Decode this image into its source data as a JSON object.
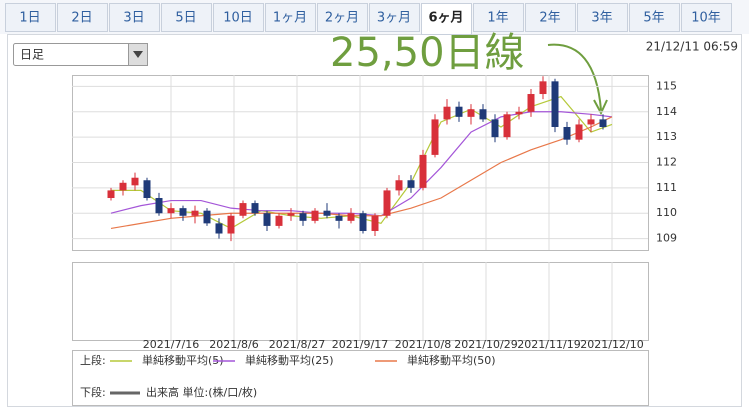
{
  "tabs": [
    "1日",
    "2日",
    "3日",
    "5日",
    "10日",
    "1ヶ月",
    "2ヶ月",
    "3ヶ月",
    "6ヶ月",
    "1年",
    "2年",
    "3年",
    "5年",
    "10年"
  ],
  "active_tab": 8,
  "dropdown": "日足",
  "timestamp": "21/12/11 06:59",
  "annotation": "25,50日線",
  "chart_data": {
    "type": "candlestick",
    "xlim": [
      -33,
      159
    ],
    "xticks": [
      {
        "value": 0,
        "label": "2021/7/16"
      },
      {
        "value": 21,
        "label": "2021/8/6"
      },
      {
        "value": 42,
        "label": "2021/8/27"
      },
      {
        "value": 63,
        "label": "2021/9/17"
      },
      {
        "value": 84,
        "label": "2021/10/8"
      },
      {
        "value": 105,
        "label": "2021/10/29"
      },
      {
        "value": 126,
        "label": "2021/11/19"
      },
      {
        "value": 147,
        "label": "2021/12/10"
      }
    ],
    "ylim": [
      108.55,
      115.45
    ],
    "yticks": [
      109,
      110,
      111,
      112,
      113,
      114,
      115
    ],
    "grid": true,
    "up_color": "#d8303a",
    "down_color": "#1f3a78",
    "candles": [
      {
        "x": -20,
        "open": 110.6,
        "high": 111.0,
        "low": 110.5,
        "close": 110.9
      },
      {
        "x": -16,
        "open": 110.9,
        "high": 111.3,
        "low": 110.7,
        "close": 111.2
      },
      {
        "x": -12,
        "open": 111.1,
        "high": 111.6,
        "low": 110.9,
        "close": 111.4
      },
      {
        "x": -8,
        "open": 111.3,
        "high": 111.4,
        "low": 110.5,
        "close": 110.6
      },
      {
        "x": -4,
        "open": 110.6,
        "high": 110.8,
        "low": 109.9,
        "close": 110.0
      },
      {
        "x": 0,
        "open": 110.0,
        "high": 110.4,
        "low": 109.8,
        "close": 110.2
      },
      {
        "x": 4,
        "open": 110.2,
        "high": 110.3,
        "low": 109.7,
        "close": 109.9
      },
      {
        "x": 8,
        "open": 109.9,
        "high": 110.3,
        "low": 109.6,
        "close": 110.1
      },
      {
        "x": 12,
        "open": 110.1,
        "high": 110.2,
        "low": 109.5,
        "close": 109.6
      },
      {
        "x": 16,
        "open": 109.6,
        "high": 109.8,
        "low": 109.0,
        "close": 109.2
      },
      {
        "x": 20,
        "open": 109.2,
        "high": 110.0,
        "low": 108.9,
        "close": 109.9
      },
      {
        "x": 24,
        "open": 109.9,
        "high": 110.5,
        "low": 109.8,
        "close": 110.4
      },
      {
        "x": 28,
        "open": 110.4,
        "high": 110.5,
        "low": 109.9,
        "close": 110.0
      },
      {
        "x": 32,
        "open": 110.0,
        "high": 110.1,
        "low": 109.3,
        "close": 109.5
      },
      {
        "x": 36,
        "open": 109.5,
        "high": 110.0,
        "low": 109.4,
        "close": 109.9
      },
      {
        "x": 40,
        "open": 109.9,
        "high": 110.2,
        "low": 109.7,
        "close": 110.0
      },
      {
        "x": 44,
        "open": 110.0,
        "high": 110.1,
        "low": 109.5,
        "close": 109.7
      },
      {
        "x": 48,
        "open": 109.7,
        "high": 110.2,
        "low": 109.6,
        "close": 110.1
      },
      {
        "x": 52,
        "open": 110.1,
        "high": 110.4,
        "low": 109.8,
        "close": 109.9
      },
      {
        "x": 56,
        "open": 109.9,
        "high": 110.0,
        "low": 109.4,
        "close": 109.7
      },
      {
        "x": 60,
        "open": 109.7,
        "high": 110.2,
        "low": 109.6,
        "close": 110.0
      },
      {
        "x": 64,
        "open": 110.0,
        "high": 110.1,
        "low": 109.2,
        "close": 109.3
      },
      {
        "x": 68,
        "open": 109.3,
        "high": 110.0,
        "low": 109.1,
        "close": 109.9
      },
      {
        "x": 72,
        "open": 109.9,
        "high": 111.0,
        "low": 109.8,
        "close": 110.9
      },
      {
        "x": 76,
        "open": 110.9,
        "high": 111.5,
        "low": 110.7,
        "close": 111.3
      },
      {
        "x": 80,
        "open": 111.3,
        "high": 111.5,
        "low": 110.8,
        "close": 111.0
      },
      {
        "x": 84,
        "open": 111.0,
        "high": 112.5,
        "low": 110.9,
        "close": 112.3
      },
      {
        "x": 88,
        "open": 112.3,
        "high": 113.9,
        "low": 112.2,
        "close": 113.7
      },
      {
        "x": 92,
        "open": 113.7,
        "high": 114.5,
        "low": 113.5,
        "close": 114.2
      },
      {
        "x": 96,
        "open": 114.2,
        "high": 114.4,
        "low": 113.6,
        "close": 113.8
      },
      {
        "x": 100,
        "open": 113.8,
        "high": 114.3,
        "low": 113.5,
        "close": 114.1
      },
      {
        "x": 104,
        "open": 114.1,
        "high": 114.3,
        "low": 113.6,
        "close": 113.7
      },
      {
        "x": 108,
        "open": 113.7,
        "high": 113.9,
        "low": 112.8,
        "close": 113.0
      },
      {
        "x": 112,
        "open": 113.0,
        "high": 114.0,
        "low": 112.9,
        "close": 113.9
      },
      {
        "x": 116,
        "open": 113.9,
        "high": 114.2,
        "low": 113.7,
        "close": 114.0
      },
      {
        "x": 120,
        "open": 114.0,
        "high": 114.9,
        "low": 113.8,
        "close": 114.7
      },
      {
        "x": 124,
        "open": 114.7,
        "high": 115.4,
        "low": 114.5,
        "close": 115.2
      },
      {
        "x": 128,
        "open": 115.2,
        "high": 115.3,
        "low": 113.2,
        "close": 113.4
      },
      {
        "x": 132,
        "open": 113.4,
        "high": 113.6,
        "low": 112.7,
        "close": 112.9
      },
      {
        "x": 136,
        "open": 112.9,
        "high": 113.7,
        "low": 112.8,
        "close": 113.5
      },
      {
        "x": 140,
        "open": 113.5,
        "high": 113.9,
        "low": 113.2,
        "close": 113.7
      },
      {
        "x": 144,
        "open": 113.7,
        "high": 113.9,
        "low": 113.3,
        "close": 113.4
      }
    ],
    "ma_x": [
      -20,
      -10,
      0,
      10,
      20,
      30,
      40,
      50,
      60,
      70,
      80,
      90,
      100,
      110,
      120,
      130,
      140,
      147
    ],
    "series": [
      {
        "name": "単純移動平均(5)",
        "color": "#b5c93a",
        "values": [
          110.9,
          110.9,
          110.1,
          110.0,
          109.4,
          110.1,
          109.9,
          109.8,
          109.9,
          109.6,
          111.2,
          113.6,
          114.1,
          113.4,
          114.2,
          114.6,
          113.2,
          113.5
        ]
      },
      {
        "name": "単純移動平均(25)",
        "color": "#a456d8",
        "values": [
          110.0,
          110.3,
          110.5,
          110.5,
          110.2,
          110.1,
          110.1,
          110.0,
          110.0,
          109.9,
          110.6,
          111.8,
          113.2,
          113.8,
          114.0,
          114.0,
          113.9,
          113.8
        ]
      },
      {
        "name": "単純移動平均(50)",
        "color": "#e8784a",
        "values": [
          109.4,
          109.6,
          109.8,
          109.9,
          110.0,
          110.0,
          110.0,
          110.0,
          109.9,
          109.9,
          110.2,
          110.6,
          111.3,
          112.0,
          112.5,
          112.9,
          113.4,
          113.8
        ]
      }
    ]
  },
  "legend": {
    "upper_label": "上段:",
    "lower_label": "下段:",
    "volume": "出来高 単位:(株/口/枚)",
    "volume_color": "#666666"
  }
}
